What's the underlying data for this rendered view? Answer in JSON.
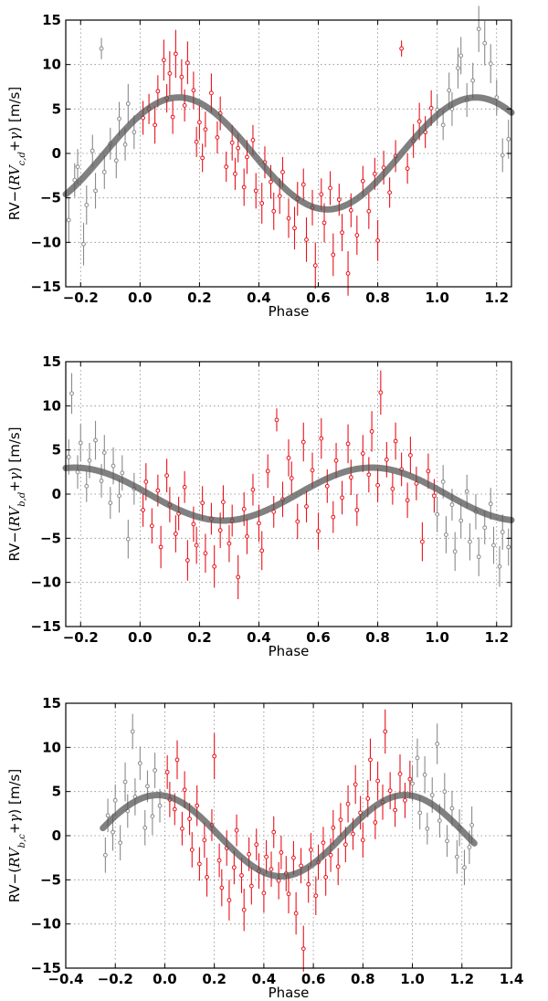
{
  "colors": {
    "in_phase": "#e8121b",
    "wrapped": "#8a8a8a",
    "fit": "#555555"
  },
  "chart_data": [
    {
      "type": "scatter",
      "xlabel": "Phase",
      "ylabel": {
        "prefix": "RV−(",
        "rv": "RV",
        "sub": "c,d",
        "plus": "+",
        "gamma": "γ",
        "suffix": ") [m/s]"
      },
      "xlim": [
        -0.25,
        1.25
      ],
      "ylim": [
        -15,
        15
      ],
      "xticks": [
        -0.2,
        0.0,
        0.2,
        0.4,
        0.6,
        0.8,
        1.0,
        1.2
      ],
      "xtick_labels": [
        "−0.2",
        "0.0",
        "0.2",
        "0.4",
        "0.6",
        "0.8",
        "1.0",
        "1.2"
      ],
      "yticks": [
        -15,
        -10,
        -5,
        0,
        5,
        10,
        15
      ],
      "ytick_labels": [
        "−15",
        "−10",
        "−5",
        "0",
        "5",
        "10",
        "15"
      ],
      "fit": {
        "amplitude": 6.3,
        "peak_phase": 0.13,
        "x_range": [
          -0.25,
          1.25
        ]
      },
      "series": [
        {
          "name": "phase 0-1",
          "color": "#e8121b",
          "x": [
            0.01,
            0.03,
            0.05,
            0.06,
            0.08,
            0.09,
            0.1,
            0.11,
            0.12,
            0.14,
            0.15,
            0.16,
            0.18,
            0.19,
            0.2,
            0.21,
            0.22,
            0.24,
            0.26,
            0.27,
            0.29,
            0.31,
            0.32,
            0.33,
            0.35,
            0.36,
            0.38,
            0.39,
            0.41,
            0.42,
            0.44,
            0.45,
            0.47,
            0.48,
            0.5,
            0.52,
            0.53,
            0.55,
            0.56,
            0.58,
            0.59,
            0.61,
            0.62,
            0.64,
            0.65,
            0.67,
            0.68,
            0.7,
            0.71,
            0.73,
            0.75,
            0.77,
            0.79,
            0.8,
            0.82,
            0.84,
            0.86,
            0.88,
            0.9,
            0.92,
            0.94,
            0.96,
            0.98
          ],
          "y": [
            4.0,
            5.0,
            3.2,
            7.0,
            10.5,
            6.2,
            9.0,
            4.1,
            11.2,
            8.6,
            5.4,
            10.2,
            7.1,
            1.3,
            3.5,
            -0.5,
            2.7,
            6.8,
            1.8,
            4.5,
            -1.5,
            1.2,
            -2.3,
            0.6,
            -3.8,
            -0.4,
            1.5,
            -4.2,
            -5.6,
            -1.0,
            -3.2,
            -6.5,
            -4.8,
            -2.1,
            -7.3,
            -8.4,
            -5.1,
            -3.5,
            -9.7,
            -6.1,
            -12.6,
            -4.6,
            -7.8,
            -3.9,
            -11.4,
            -5.2,
            -8.9,
            -13.5,
            -6.4,
            -9.2,
            -3.1,
            -6.5,
            -2.3,
            -9.8,
            -1.6,
            -4.4,
            -0.3,
            11.8,
            -1.7,
            1.4,
            3.6,
            2.4,
            5.1
          ],
          "err": [
            1.9,
            1.7,
            2.1,
            1.8,
            2.3,
            1.6,
            2.5,
            1.9,
            2.7,
            2.0,
            1.8,
            2.4,
            2.1,
            1.7,
            1.9,
            1.6,
            2.0,
            2.2,
            1.8,
            1.9,
            1.7,
            2.0,
            1.8,
            1.6,
            2.1,
            1.9,
            1.7,
            2.0,
            2.3,
            1.8,
            1.9,
            2.1,
            2.0,
            1.7,
            2.2,
            2.4,
            1.9,
            1.8,
            2.5,
            2.0,
            2.6,
            1.8,
            2.2,
            1.9,
            2.4,
            1.8,
            2.1,
            2.5,
            1.9,
            2.2,
            1.7,
            2.0,
            1.8,
            2.3,
            1.9,
            1.7,
            1.8,
            0.9,
            1.7,
            1.9,
            2.1,
            1.8,
            2.0
          ]
        },
        {
          "name": "wrapped",
          "color": "#8a8a8a",
          "x": [
            -0.24,
            -0.22,
            -0.21,
            -0.19,
            -0.18,
            -0.16,
            -0.15,
            -0.13,
            -0.12,
            -0.1,
            -0.08,
            -0.07,
            -0.05,
            -0.04,
            -0.02,
            1.0,
            1.02,
            1.04,
            1.05,
            1.07,
            1.08,
            1.1,
            1.12,
            1.14,
            1.16,
            1.18,
            1.2,
            1.22,
            1.24
          ],
          "y": [
            -7.5,
            -3.0,
            -1.5,
            -10.2,
            -5.8,
            0.3,
            -4.2,
            11.8,
            -2.1,
            1.1,
            -0.8,
            3.9,
            1.0,
            5.6,
            2.4,
            4.9,
            3.2,
            7.1,
            5.0,
            9.6,
            11.0,
            6.0,
            8.2,
            14.0,
            12.4,
            10.1,
            6.3,
            -0.2,
            1.6
          ],
          "err": [
            2.6,
            1.9,
            2.0,
            2.4,
            2.2,
            1.8,
            2.0,
            1.2,
            1.9,
            1.8,
            2.0,
            1.9,
            1.8,
            2.2,
            1.9,
            1.8,
            1.7,
            2.0,
            1.9,
            2.3,
            2.1,
            1.9,
            2.0,
            2.6,
            2.5,
            2.2,
            2.0,
            1.9,
            2.2
          ]
        }
      ]
    },
    {
      "type": "scatter",
      "xlabel": "Phase",
      "ylabel": {
        "prefix": "RV−(",
        "rv": "RV",
        "sub": "b,d",
        "plus": "+",
        "gamma": "γ",
        "suffix": ") [m/s]"
      },
      "xlim": [
        -0.25,
        1.25
      ],
      "ylim": [
        -15,
        15
      ],
      "xticks": [
        -0.2,
        0.0,
        0.2,
        0.4,
        0.6,
        0.8,
        1.0,
        1.2
      ],
      "xtick_labels": [
        "−0.2",
        "0.0",
        "0.2",
        "0.4",
        "0.6",
        "0.8",
        "1.0",
        "1.2"
      ],
      "yticks": [
        -15,
        -10,
        -5,
        0,
        5,
        10,
        15
      ],
      "ytick_labels": [
        "−15",
        "−10",
        "−5",
        "0",
        "5",
        "10",
        "15"
      ],
      "fit": {
        "amplitude": 3.0,
        "peak_phase": 0.78,
        "x_range": [
          -0.25,
          1.25
        ]
      },
      "series": [
        {
          "name": "phase 0-1",
          "color": "#e8121b",
          "x": [
            0.01,
            0.02,
            0.04,
            0.06,
            0.07,
            0.09,
            0.1,
            0.12,
            0.13,
            0.15,
            0.16,
            0.18,
            0.19,
            0.21,
            0.22,
            0.24,
            0.25,
            0.27,
            0.28,
            0.3,
            0.31,
            0.33,
            0.35,
            0.36,
            0.38,
            0.4,
            0.41,
            0.43,
            0.45,
            0.46,
            0.48,
            0.5,
            0.51,
            0.53,
            0.55,
            0.56,
            0.58,
            0.6,
            0.61,
            0.63,
            0.65,
            0.66,
            0.68,
            0.7,
            0.71,
            0.73,
            0.75,
            0.77,
            0.78,
            0.8,
            0.81,
            0.83,
            0.85,
            0.86,
            0.88,
            0.9,
            0.91,
            0.93,
            0.95,
            0.97,
            0.99
          ],
          "y": [
            -1.8,
            1.4,
            -3.6,
            0.4,
            -6.0,
            2.1,
            -1.2,
            -4.5,
            -2.2,
            0.8,
            -7.5,
            -3.4,
            -5.8,
            -1.0,
            -6.7,
            -2.8,
            -8.2,
            -4.1,
            -0.9,
            -5.6,
            -3.0,
            -9.4,
            -1.7,
            -4.8,
            0.5,
            -3.3,
            -6.4,
            2.6,
            -2.0,
            8.4,
            -0.6,
            4.1,
            1.8,
            -3.1,
            5.9,
            -1.4,
            2.7,
            -4.2,
            6.3,
            0.9,
            -2.6,
            3.8,
            -0.4,
            5.7,
            1.9,
            -1.8,
            4.6,
            2.2,
            7.1,
            1.0,
            11.5,
            3.9,
            0.6,
            6.0,
            2.8,
            -0.7,
            4.4,
            1.2,
            -5.4,
            2.6,
            -0.2
          ],
          "err": [
            1.9,
            2.1,
            2.0,
            1.8,
            2.4,
            1.9,
            2.0,
            2.1,
            1.9,
            1.8,
            2.3,
            2.0,
            2.1,
            1.9,
            2.2,
            1.8,
            2.4,
            2.0,
            1.9,
            2.1,
            1.8,
            2.5,
            1.9,
            2.0,
            1.8,
            2.1,
            2.2,
            1.9,
            1.8,
            1.3,
            2.0,
            2.1,
            1.9,
            2.0,
            2.2,
            1.8,
            2.0,
            2.1,
            2.3,
            1.9,
            1.8,
            2.0,
            1.9,
            2.2,
            2.0,
            1.8,
            2.1,
            2.0,
            2.3,
            1.9,
            2.5,
            2.0,
            1.8,
            2.1,
            1.9,
            2.0,
            2.1,
            1.9,
            2.2,
            2.0,
            1.9
          ]
        },
        {
          "name": "wrapped",
          "color": "#8a8a8a",
          "x": [
            -0.24,
            -0.23,
            -0.21,
            -0.2,
            -0.18,
            -0.17,
            -0.15,
            -0.13,
            -0.12,
            -0.1,
            -0.09,
            -0.07,
            -0.06,
            -0.04,
            -0.02,
            1.0,
            1.02,
            1.03,
            1.05,
            1.06,
            1.08,
            1.1,
            1.11,
            1.13,
            1.14,
            1.16,
            1.18,
            1.19,
            1.21,
            1.22,
            1.24
          ],
          "y": [
            4.2,
            11.4,
            2.5,
            5.8,
            0.9,
            3.8,
            6.1,
            1.5,
            4.7,
            -1.0,
            3.2,
            -0.2,
            2.4,
            -5.1,
            0.6,
            -2.3,
            1.4,
            -4.6,
            -1.2,
            -6.5,
            -3.0,
            0.3,
            -5.4,
            -2.0,
            -7.1,
            -3.8,
            -1.1,
            -5.8,
            -8.2,
            -4.3,
            -6.0
          ],
          "err": [
            2.0,
            2.3,
            1.9,
            2.1,
            1.8,
            2.0,
            2.2,
            1.9,
            2.0,
            1.8,
            2.1,
            1.9,
            2.0,
            2.2,
            1.8,
            2.0,
            1.9,
            2.1,
            1.8,
            2.2,
            2.0,
            1.9,
            2.1,
            2.0,
            2.2,
            1.9,
            1.8,
            2.1,
            2.3,
            2.0,
            2.1
          ]
        }
      ]
    },
    {
      "type": "scatter",
      "xlabel": "Phase",
      "ylabel": {
        "prefix": "RV−(",
        "rv": "RV",
        "sub": "b,c",
        "plus": "+",
        "gamma": "γ",
        "suffix": ") [m/s]"
      },
      "xlim": [
        -0.4,
        1.4
      ],
      "ylim": [
        -15,
        15
      ],
      "xticks": [
        -0.4,
        -0.2,
        0.0,
        0.2,
        0.4,
        0.6,
        0.8,
        1.0,
        1.2,
        1.4
      ],
      "xtick_labels": [
        "−0.4",
        "−0.2",
        "0.0",
        "0.2",
        "0.4",
        "0.6",
        "0.8",
        "1.0",
        "1.2",
        "1.4"
      ],
      "yticks": [
        -15,
        -10,
        -5,
        0,
        5,
        10,
        15
      ],
      "ytick_labels": [
        "−15",
        "−10",
        "−5",
        "0",
        "5",
        "10",
        "15"
      ],
      "fit": {
        "amplitude": 4.6,
        "peak_phase": -0.03,
        "x_range": [
          -0.25,
          1.25
        ]
      },
      "series": [
        {
          "name": "phase 0-1",
          "color": "#e8121b",
          "x": [
            0.01,
            0.02,
            0.04,
            0.05,
            0.07,
            0.08,
            0.1,
            0.11,
            0.13,
            0.14,
            0.16,
            0.17,
            0.19,
            0.2,
            0.22,
            0.23,
            0.25,
            0.26,
            0.28,
            0.29,
            0.31,
            0.32,
            0.34,
            0.35,
            0.37,
            0.38,
            0.4,
            0.41,
            0.43,
            0.44,
            0.46,
            0.47,
            0.49,
            0.5,
            0.52,
            0.53,
            0.55,
            0.56,
            0.58,
            0.59,
            0.61,
            0.62,
            0.64,
            0.65,
            0.67,
            0.68,
            0.7,
            0.71,
            0.73,
            0.74,
            0.76,
            0.77,
            0.79,
            0.8,
            0.82,
            0.83,
            0.85,
            0.86,
            0.88,
            0.89,
            0.91,
            0.93,
            0.95,
            0.97,
            0.99
          ],
          "y": [
            7.2,
            4.1,
            3.0,
            8.6,
            0.8,
            5.2,
            1.9,
            -1.6,
            3.4,
            -3.2,
            -0.5,
            -4.7,
            1.2,
            9.0,
            -2.8,
            -5.9,
            -1.4,
            -7.3,
            -3.6,
            0.6,
            -4.5,
            -8.4,
            -2.1,
            -5.7,
            -1.0,
            -4.0,
            -6.5,
            -2.4,
            -3.8,
            0.4,
            -5.1,
            -1.9,
            -4.3,
            -6.6,
            -2.5,
            -8.8,
            -3.4,
            -12.8,
            -5.5,
            -1.6,
            -6.8,
            -3.0,
            -0.8,
            -4.7,
            -2.2,
            0.9,
            -3.5,
            1.8,
            -1.0,
            3.6,
            0.2,
            5.8,
            2.6,
            -0.5,
            4.2,
            8.6,
            1.5,
            6.2,
            3.8,
            11.8,
            5.1,
            2.9,
            7.0,
            4.0,
            6.4
          ],
          "err": [
            1.9,
            2.0,
            1.8,
            2.2,
            1.9,
            2.1,
            1.8,
            2.0,
            2.3,
            1.9,
            2.0,
            2.2,
            1.8,
            2.6,
            1.9,
            2.1,
            2.0,
            2.3,
            1.9,
            1.8,
            2.0,
            2.4,
            1.9,
            2.1,
            1.8,
            2.0,
            2.2,
            1.9,
            2.0,
            1.8,
            2.1,
            1.9,
            2.0,
            2.2,
            1.9,
            2.4,
            2.0,
            2.6,
            2.1,
            1.9,
            2.2,
            2.0,
            1.8,
            2.1,
            1.9,
            2.0,
            2.1,
            1.9,
            2.0,
            2.1,
            1.8,
            2.2,
            1.9,
            2.0,
            2.1,
            2.4,
            1.9,
            2.2,
            2.0,
            2.5,
            2.1,
            1.9,
            2.2,
            2.0,
            2.1
          ]
        },
        {
          "name": "wrapped",
          "color": "#8a8a8a",
          "x": [
            -0.24,
            -0.23,
            -0.21,
            -0.2,
            -0.18,
            -0.16,
            -0.15,
            -0.13,
            -0.12,
            -0.1,
            -0.08,
            -0.07,
            -0.05,
            -0.04,
            -0.02,
            1.0,
            1.02,
            1.03,
            1.05,
            1.06,
            1.08,
            1.1,
            1.11,
            1.13,
            1.14,
            1.16,
            1.18,
            1.19,
            1.21,
            1.23,
            1.24
          ],
          "y": [
            -2.2,
            2.3,
            0.4,
            4.0,
            -0.8,
            6.1,
            2.8,
            11.8,
            4.4,
            8.2,
            0.9,
            5.6,
            2.2,
            7.4,
            3.4,
            5.9,
            8.8,
            2.6,
            6.9,
            0.8,
            4.6,
            10.4,
            1.7,
            5.0,
            -0.6,
            3.1,
            -2.4,
            0.9,
            -3.6,
            -1.3,
            1.2
          ],
          "err": [
            2.0,
            1.9,
            2.1,
            1.8,
            2.0,
            2.2,
            1.9,
            2.0,
            2.1,
            1.9,
            2.0,
            1.8,
            2.1,
            2.0,
            1.9,
            2.0,
            2.2,
            1.9,
            2.1,
            1.8,
            2.0,
            2.3,
            1.9,
            2.1,
            1.8,
            2.0,
            1.9,
            2.1,
            2.0,
            1.9,
            2.1
          ]
        }
      ]
    }
  ]
}
